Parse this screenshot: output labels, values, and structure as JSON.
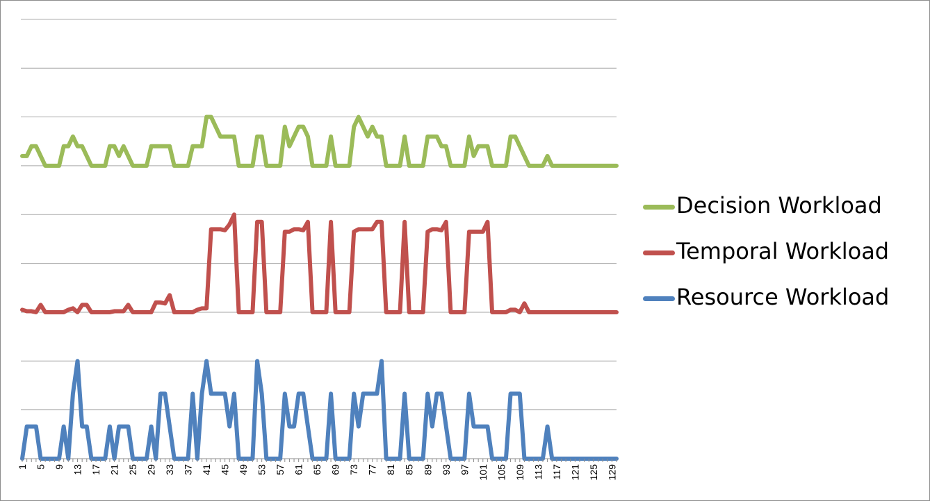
{
  "chart_data": {
    "type": "line",
    "title": "",
    "xlabel": "",
    "ylabel": "",
    "grid": true,
    "legend_position": "right",
    "x_tick_labels": [
      "1",
      "5",
      "9",
      "13",
      "17",
      "21",
      "25",
      "29",
      "33",
      "37",
      "41",
      "45",
      "49",
      "53",
      "57",
      "61",
      "65",
      "69",
      "73",
      "77",
      "81",
      "85",
      "89",
      "93",
      "97",
      "101",
      "105",
      "109",
      "113",
      "117",
      "121",
      "125",
      "129"
    ],
    "x": [
      1,
      2,
      3,
      4,
      5,
      6,
      7,
      8,
      9,
      10,
      11,
      12,
      13,
      14,
      15,
      16,
      17,
      18,
      19,
      20,
      21,
      22,
      23,
      24,
      25,
      26,
      27,
      28,
      29,
      30,
      31,
      32,
      33,
      34,
      35,
      36,
      37,
      38,
      39,
      40,
      41,
      42,
      43,
      44,
      45,
      46,
      47,
      48,
      49,
      50,
      51,
      52,
      53,
      54,
      55,
      56,
      57,
      58,
      59,
      60,
      61,
      62,
      63,
      64,
      65,
      66,
      67,
      68,
      69,
      70,
      71,
      72,
      73,
      74,
      75,
      76,
      77,
      78,
      79,
      80,
      81,
      82,
      83,
      84,
      85,
      86,
      87,
      88,
      89,
      90,
      91,
      92,
      93,
      94,
      95,
      96,
      97,
      98,
      99,
      100,
      101,
      102,
      103,
      104,
      105,
      106,
      107,
      108,
      109,
      110,
      111,
      112,
      113,
      114,
      115,
      116,
      117,
      118,
      119,
      120,
      121,
      122,
      123,
      124,
      125,
      126,
      127,
      128,
      129,
      130
    ],
    "ylim": [
      0,
      8.6
    ],
    "series": [
      {
        "name": "Decision Workload",
        "color": "#9bbb59",
        "values": [
          6.2,
          6.2,
          6.4,
          6.4,
          6.2,
          6,
          6,
          6,
          6,
          6.4,
          6.4,
          6.6,
          6.4,
          6.4,
          6.2,
          6,
          6,
          6,
          6,
          6.4,
          6.4,
          6.2,
          6.4,
          6.2,
          6,
          6,
          6,
          6,
          6.4,
          6.4,
          6.4,
          6.4,
          6.4,
          6,
          6,
          6,
          6,
          6.4,
          6.4,
          6.4,
          7,
          7,
          6.8,
          6.6,
          6.6,
          6.6,
          6.6,
          6,
          6,
          6,
          6,
          6.6,
          6.6,
          6,
          6,
          6,
          6,
          6.8,
          6.4,
          6.6,
          6.8,
          6.8,
          6.6,
          6,
          6,
          6,
          6,
          6.6,
          6,
          6,
          6,
          6,
          6.8,
          7,
          6.8,
          6.6,
          6.8,
          6.6,
          6.6,
          6,
          6,
          6,
          6,
          6.6,
          6,
          6,
          6,
          6,
          6.6,
          6.6,
          6.6,
          6.4,
          6.4,
          6,
          6,
          6,
          6,
          6.6,
          6.2,
          6.4,
          6.4,
          6.4,
          6,
          6,
          6,
          6,
          6.6,
          6.6,
          6.4,
          6.2,
          6,
          6,
          6,
          6,
          6.2,
          6,
          6,
          6,
          6,
          6,
          6,
          6,
          6,
          6,
          6,
          6,
          6,
          6,
          6,
          6
        ]
      },
      {
        "name": "Temporal Workload",
        "color": "#c0504d",
        "values": [
          3.05,
          3.02,
          3.02,
          3,
          3.15,
          3,
          3,
          3,
          3,
          3,
          3.05,
          3.08,
          3,
          3.15,
          3.15,
          3,
          3,
          3,
          3,
          3,
          3.02,
          3.02,
          3.02,
          3.15,
          3,
          3,
          3,
          3,
          3,
          3.2,
          3.2,
          3.18,
          3.35,
          3,
          3,
          3,
          3,
          3,
          3.05,
          3.08,
          3.08,
          4.7,
          4.7,
          4.7,
          4.68,
          4.8,
          5,
          3,
          3,
          3,
          3,
          4.85,
          4.85,
          3,
          3,
          3,
          3,
          4.65,
          4.65,
          4.7,
          4.7,
          4.68,
          4.85,
          3,
          3,
          3,
          3,
          4.85,
          3,
          3,
          3,
          3,
          4.65,
          4.7,
          4.7,
          4.7,
          4.7,
          4.85,
          4.85,
          3,
          3,
          3,
          3,
          4.85,
          3,
          3,
          3,
          3,
          4.65,
          4.7,
          4.7,
          4.68,
          4.85,
          3,
          3,
          3,
          3,
          4.65,
          4.65,
          4.65,
          4.65,
          4.85,
          3,
          3,
          3,
          3,
          3.05,
          3.05,
          3,
          3.18,
          3,
          3,
          3,
          3,
          3,
          3,
          3,
          3,
          3,
          3,
          3,
          3,
          3,
          3,
          3,
          3,
          3,
          3,
          3,
          3
        ]
      },
      {
        "name": "Resource Workload",
        "color": "#4f81bd",
        "values": [
          0,
          0.66,
          0.66,
          0.66,
          0,
          0,
          0,
          0,
          0,
          0.66,
          0,
          1.33,
          2,
          0.66,
          0.66,
          0,
          0,
          0,
          0,
          0.66,
          0,
          0.66,
          0.66,
          0.66,
          0,
          0,
          0,
          0,
          0.66,
          0,
          1.33,
          1.33,
          0.66,
          0,
          0,
          0,
          0,
          1.33,
          0,
          1.33,
          2,
          1.33,
          1.33,
          1.33,
          1.33,
          0.66,
          1.33,
          0,
          0,
          0,
          0,
          2,
          1.33,
          0,
          0,
          0,
          0,
          1.33,
          0.66,
          0.66,
          1.33,
          1.33,
          0.66,
          0,
          0,
          0,
          0,
          1.33,
          0,
          0,
          0,
          0,
          1.33,
          0.66,
          1.33,
          1.33,
          1.33,
          1.33,
          2,
          0,
          0,
          0,
          0,
          1.33,
          0,
          0,
          0,
          0,
          1.33,
          0.66,
          1.33,
          1.33,
          0.66,
          0,
          0,
          0,
          0,
          1.33,
          0.66,
          0.66,
          0.66,
          0.66,
          0,
          0,
          0,
          0,
          1.33,
          1.33,
          1.33,
          0,
          0,
          0,
          0,
          0,
          0.66,
          0,
          0,
          0,
          0,
          0,
          0,
          0,
          0,
          0,
          0,
          0,
          0,
          0,
          0,
          0
        ]
      }
    ]
  }
}
